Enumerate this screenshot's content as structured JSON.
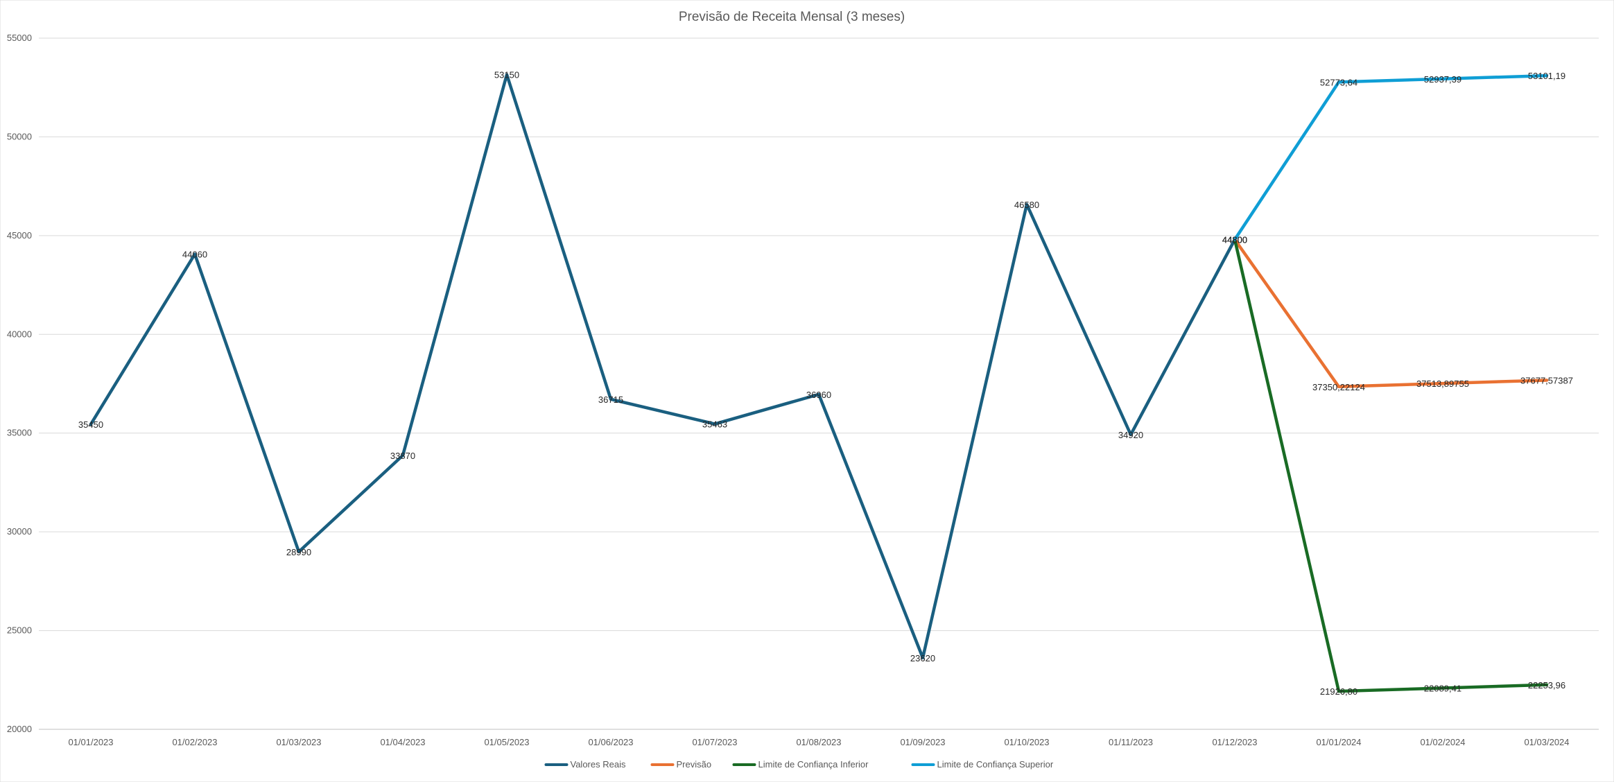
{
  "chart_data": {
    "type": "line",
    "title": "Previsão de Receita Mensal (3 meses)",
    "xlabel": "",
    "ylabel": "",
    "categories": [
      "01/01/2023",
      "01/02/2023",
      "01/03/2023",
      "01/04/2023",
      "01/05/2023",
      "01/06/2023",
      "01/07/2023",
      "01/08/2023",
      "01/09/2023",
      "01/10/2023",
      "01/11/2023",
      "01/12/2023",
      "01/01/2024",
      "01/02/2024",
      "01/03/2024"
    ],
    "ylim": [
      20000,
      55000
    ],
    "yticks": [
      20000,
      25000,
      30000,
      35000,
      40000,
      45000,
      50000,
      55000
    ],
    "grid": true,
    "legend_position": "bottom",
    "series": [
      {
        "name": "Valores Reais",
        "color": "#1a5f80",
        "values": [
          35450,
          44060,
          28990,
          33870,
          53150,
          36715,
          35463,
          36960,
          23620,
          46580,
          34920,
          44800,
          null,
          null,
          null
        ],
        "labels": [
          "35450",
          "44060",
          "28990",
          "33870",
          "53150",
          "36715",
          "35463",
          "36960",
          "23620",
          "46580",
          "34920",
          "44800",
          "",
          "",
          ""
        ]
      },
      {
        "name": "Previsão",
        "color": "#e97132",
        "values": [
          null,
          null,
          null,
          null,
          null,
          null,
          null,
          null,
          null,
          null,
          null,
          44800,
          37350.22124,
          37513.89755,
          37677.57387
        ],
        "labels": [
          "",
          "",
          "",
          "",
          "",
          "",
          "",
          "",
          "",
          "",
          "",
          "44800",
          "37350,22124",
          "37513,89755",
          "37677,57387"
        ]
      },
      {
        "name": "Limite de Confiança Inferior",
        "color": "#196b24",
        "values": [
          null,
          null,
          null,
          null,
          null,
          null,
          null,
          null,
          null,
          null,
          null,
          44800,
          21926.8,
          22089.41,
          22253.96
        ],
        "labels": [
          "",
          "",
          "",
          "",
          "",
          "",
          "",
          "",
          "",
          "",
          "",
          "44800",
          "21926,80",
          "22089,41",
          "22253,96"
        ]
      },
      {
        "name": "Limite de Confiança Superior",
        "color": "#0f9ed5",
        "values": [
          null,
          null,
          null,
          null,
          null,
          null,
          null,
          null,
          null,
          null,
          null,
          44800,
          52773.64,
          52937.39,
          53101.19
        ],
        "labels": [
          "",
          "",
          "",
          "",
          "",
          "",
          "",
          "",
          "",
          "",
          "",
          "44800",
          "52773,64",
          "52937,39",
          "53101,19"
        ]
      }
    ]
  }
}
